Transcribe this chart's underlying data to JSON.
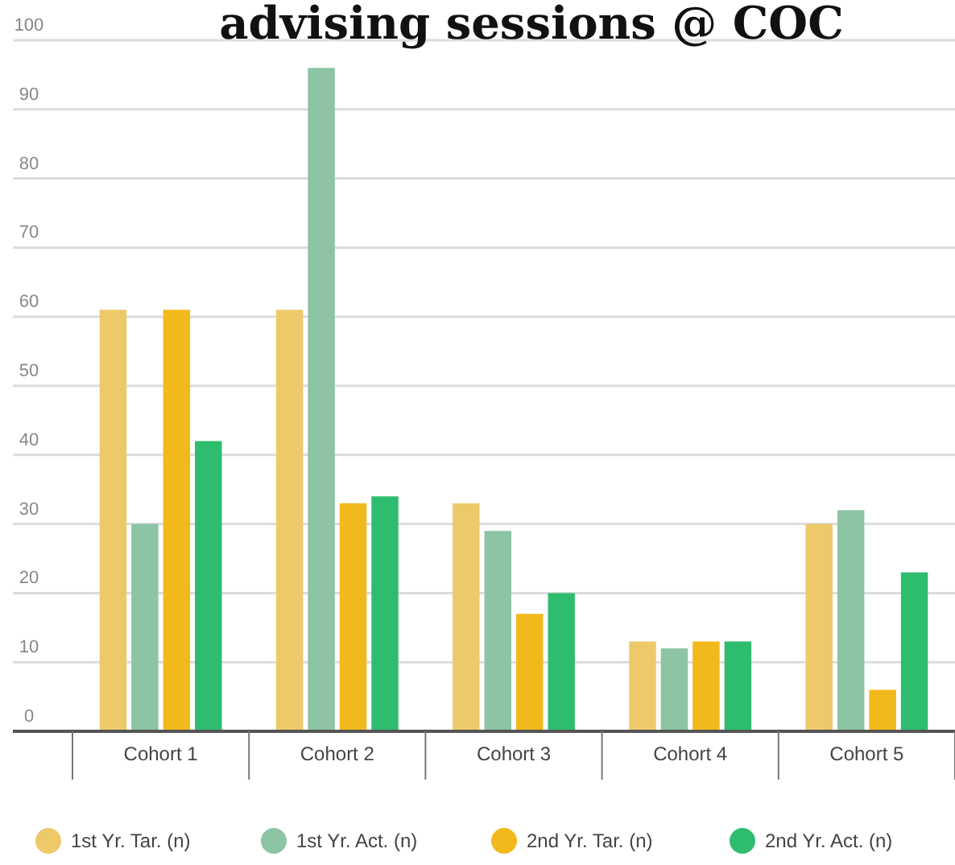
{
  "chart_data": {
    "type": "bar",
    "title": "advising sessions @ COC",
    "categories": [
      "Cohort 1",
      "Cohort 2",
      "Cohort 3",
      "Cohort 4",
      "Cohort 5"
    ],
    "series": [
      {
        "name": "1st Yr. Tar. (n)",
        "color": "#edc96a",
        "values": [
          61,
          61,
          33,
          13,
          30
        ]
      },
      {
        "name": "1st Yr. Act. (n)",
        "color": "#8cc4a4",
        "values": [
          30,
          96,
          29,
          12,
          32
        ]
      },
      {
        "name": "2nd Yr. Tar. (n)",
        "color": "#f2b91c",
        "values": [
          61,
          33,
          17,
          13,
          6
        ]
      },
      {
        "name": "2nd Yr. Act. (n)",
        "color": "#2ebd6e",
        "values": [
          42,
          34,
          20,
          13,
          23
        ]
      }
    ],
    "ylim": [
      0,
      100
    ],
    "yticks": [
      0,
      10,
      20,
      30,
      40,
      50,
      60,
      70,
      80,
      90,
      100
    ],
    "grid": "y",
    "legend": "bottom"
  }
}
